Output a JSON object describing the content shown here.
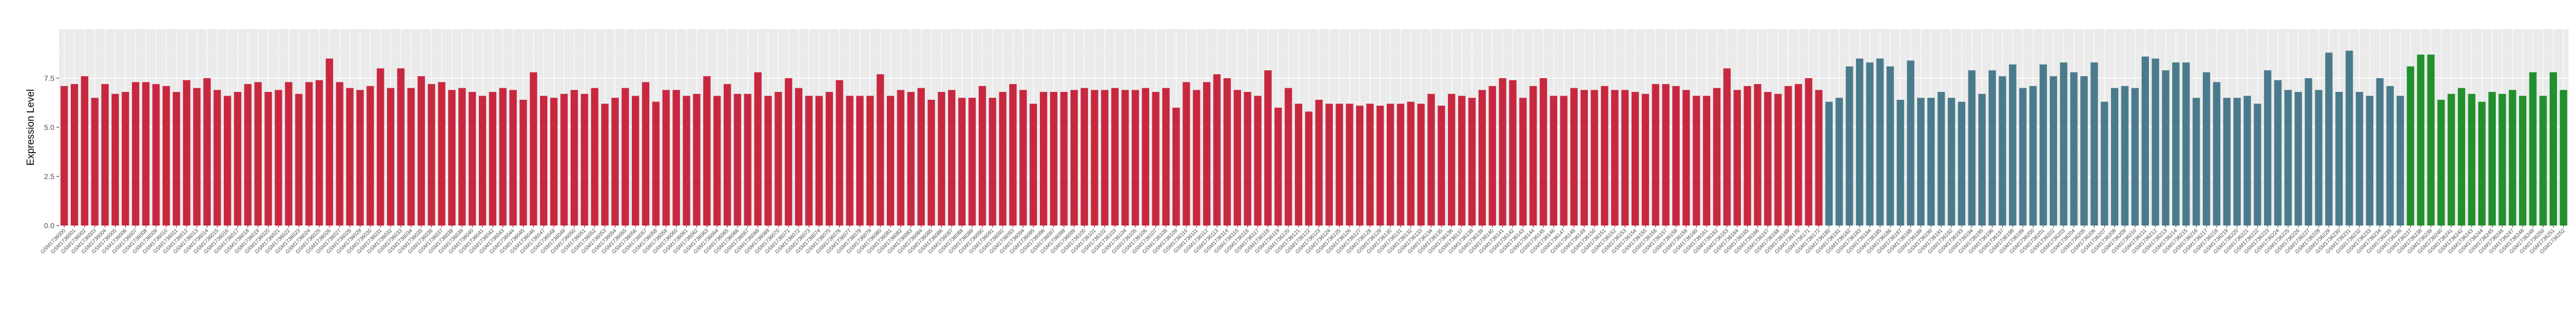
{
  "chart_data": {
    "type": "bar",
    "title": "",
    "xlabel": "",
    "ylabel": "Expression Level",
    "ylim": [
      0,
      10
    ],
    "yticks": [
      0.0,
      2.5,
      5.0,
      7.5
    ],
    "ytick_labels": [
      "0.0",
      "2.5",
      "5.0",
      "7.5"
    ],
    "grid": true,
    "legend": "none",
    "background_color": "#ebebeb",
    "grid_color": "#ffffff",
    "group_colors": {
      "group_1": "#c8283f",
      "group_2": "#4a7b8c",
      "group_3": "#22902c"
    },
    "category_prefix": "GSM17",
    "groups": [
      {
        "color_key": "group_1",
        "start_id": 36000,
        "values": [
          7.1,
          7.2,
          7.6,
          6.5,
          7.2,
          6.7,
          6.8,
          7.3,
          7.3,
          7.2,
          7.1,
          6.8,
          7.4,
          7.0,
          7.5,
          6.9,
          6.6,
          6.8,
          7.2,
          7.3,
          6.8,
          6.9,
          7.3,
          6.7,
          7.3,
          7.4,
          8.5,
          7.3,
          7.0,
          6.9,
          7.1,
          8.0,
          7.0,
          8.0,
          7.0,
          7.6,
          7.2,
          7.3,
          6.9,
          7.0,
          6.8,
          6.6,
          6.8,
          7.0,
          6.9,
          6.4,
          7.8,
          6.6,
          6.5,
          6.7,
          6.9,
          6.7,
          7.0,
          6.2,
          6.5,
          7.0,
          6.6,
          7.3,
          6.3,
          6.9,
          6.9,
          6.6,
          6.7,
          7.6,
          6.6,
          7.2,
          6.7,
          6.7,
          7.8,
          6.6,
          6.8,
          7.5,
          7.0,
          6.6,
          6.6,
          6.8,
          7.4,
          6.6,
          6.6,
          6.6,
          7.7,
          6.6,
          6.9,
          6.8,
          7.0,
          6.4,
          6.8,
          6.9,
          6.5,
          6.5,
          7.1,
          6.5,
          6.8,
          7.2,
          6.9,
          6.2,
          6.8,
          6.8,
          6.8,
          6.9,
          7.0,
          6.9,
          6.9,
          7.0,
          6.9,
          6.9,
          7.0,
          6.8,
          7.0,
          6.0,
          7.3,
          6.9,
          7.3,
          7.7,
          7.5,
          6.9,
          6.8,
          6.6,
          7.9,
          6.0,
          7.0,
          6.2,
          5.8,
          6.4,
          6.2,
          6.2,
          6.2,
          6.1,
          6.2,
          6.1,
          6.2,
          6.2,
          6.3,
          6.2,
          6.7,
          6.1,
          6.7,
          6.6,
          6.5,
          6.9,
          7.1,
          7.5,
          7.4,
          6.5,
          7.1,
          7.5,
          6.6,
          6.6,
          7.0,
          6.9,
          6.9,
          7.1,
          6.9,
          6.9,
          6.8,
          6.7,
          7.2,
          7.2,
          7.1,
          6.9,
          6.6,
          6.6,
          7.0,
          8.0,
          6.9,
          7.1,
          7.2,
          6.8,
          6.7,
          7.1,
          7.2,
          7.5,
          6.9
        ]
      },
      {
        "color_key": "group_2",
        "start_id": 36180,
        "values": [
          6.3,
          6.5,
          8.1,
          8.5,
          8.3,
          8.5,
          8.1,
          6.4,
          8.4,
          6.5,
          6.5,
          6.8,
          6.5,
          6.3,
          7.9,
          6.7,
          7.9,
          7.6,
          8.2,
          7.0,
          7.1,
          8.2,
          7.6,
          8.3,
          7.8,
          7.6,
          8.3,
          6.3,
          7.0,
          7.1,
          7.0,
          8.6,
          8.5,
          7.9,
          8.3,
          8.3,
          6.5,
          7.8,
          7.3,
          6.5,
          6.5,
          6.6,
          6.2,
          7.9,
          7.4,
          6.9,
          6.8,
          7.5,
          6.9,
          8.8,
          6.8,
          8.9,
          6.8,
          6.6,
          7.5,
          7.1,
          6.6
        ]
      },
      {
        "color_key": "group_3",
        "start_id": 36237,
        "values": [
          8.1,
          8.7,
          8.7,
          6.4,
          6.7,
          7.0,
          6.7,
          6.3,
          6.8,
          6.7,
          6.9,
          6.6,
          7.8,
          6.6,
          7.8,
          6.9
        ]
      }
    ],
    "y_range": [
      0,
      10
    ]
  }
}
